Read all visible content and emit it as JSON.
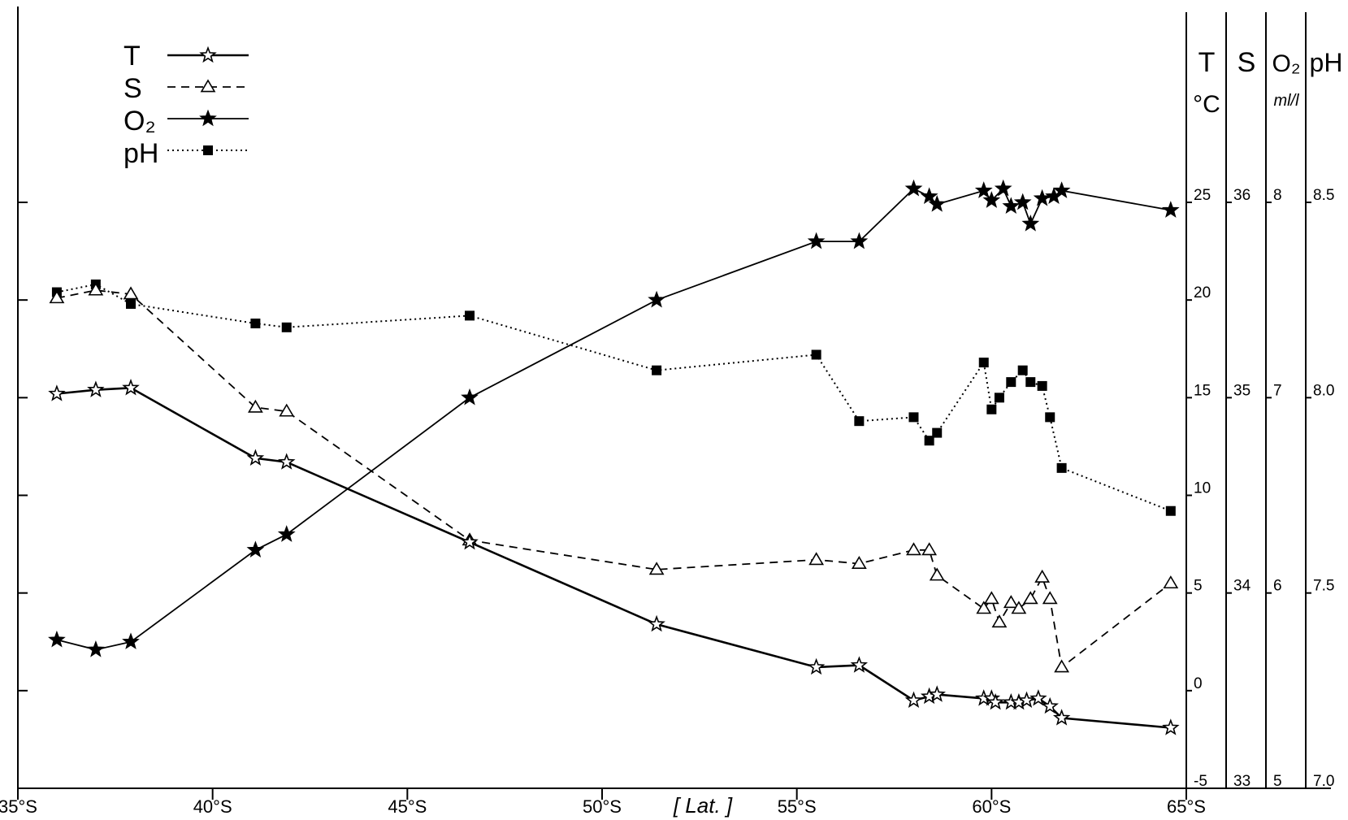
{
  "chart_data": {
    "type": "line",
    "x_axis": {
      "range": [
        35,
        65
      ],
      "ticks": [
        35,
        40,
        45,
        50,
        55,
        60,
        65
      ],
      "tick_labels": [
        "35°S",
        "40°S",
        "45°S",
        "50°S",
        "55°S",
        "60°S",
        "65°S"
      ],
      "label": "[ Lat. ]"
    },
    "y_axes": [
      {
        "title": "T",
        "unit": "°C",
        "range": [
          -5,
          25
        ],
        "ticks": [
          -5,
          0,
          5,
          10,
          15,
          20,
          25
        ],
        "tick_labels": [
          "-5",
          "0",
          "5",
          "10",
          "15",
          "20",
          "25"
        ]
      },
      {
        "title": "S",
        "unit": "",
        "range": [
          33,
          36
        ],
        "ticks": [
          33,
          34,
          35,
          36
        ],
        "tick_labels": [
          "33",
          "34",
          "35",
          "36"
        ]
      },
      {
        "title": "O₂",
        "unit": "ml/l",
        "range": [
          5,
          8
        ],
        "ticks": [
          5,
          6,
          7,
          8
        ],
        "tick_labels": [
          "5",
          "6",
          "7",
          "8"
        ]
      },
      {
        "title": "pH",
        "unit": "",
        "range": [
          7.0,
          8.5
        ],
        "ticks": [
          7.0,
          7.5,
          8.0,
          8.5
        ],
        "tick_labels": [
          "7.0",
          "7.5",
          "8.0",
          "8.5"
        ]
      }
    ],
    "legend": {
      "placement": "top-left",
      "entries": [
        {
          "label": "T",
          "line": "solid-thick",
          "marker": "open-star"
        },
        {
          "label": "S",
          "line": "dashed",
          "marker": "open-triangle"
        },
        {
          "label": "O₂",
          "line": "solid",
          "marker": "filled-star"
        },
        {
          "label": "pH",
          "line": "dotted",
          "marker": "filled-square"
        }
      ]
    },
    "grid": false,
    "series": [
      {
        "name": "T",
        "axis": 0,
        "points": [
          [
            36.0,
            15.2
          ],
          [
            37.0,
            15.4
          ],
          [
            37.9,
            15.5
          ],
          [
            41.1,
            11.9
          ],
          [
            41.9,
            11.7
          ],
          [
            46.6,
            7.6
          ],
          [
            51.4,
            3.4
          ],
          [
            55.5,
            1.2
          ],
          [
            56.6,
            1.3
          ],
          [
            58.0,
            -0.5
          ],
          [
            58.4,
            -0.3
          ],
          [
            58.6,
            -0.2
          ],
          [
            59.8,
            -0.4
          ],
          [
            60.0,
            -0.4
          ],
          [
            60.1,
            -0.6
          ],
          [
            60.5,
            -0.6
          ],
          [
            60.7,
            -0.6
          ],
          [
            60.9,
            -0.5
          ],
          [
            61.2,
            -0.4
          ],
          [
            61.5,
            -0.8
          ],
          [
            61.8,
            -1.4
          ],
          [
            64.6,
            -1.9
          ]
        ]
      },
      {
        "name": "S",
        "axis": 1,
        "points": [
          [
            36.0,
            35.51
          ],
          [
            37.0,
            35.55
          ],
          [
            37.9,
            35.53
          ],
          [
            41.1,
            34.95
          ],
          [
            41.9,
            34.93
          ],
          [
            46.6,
            34.27
          ],
          [
            51.4,
            34.12
          ],
          [
            55.5,
            34.17
          ],
          [
            56.6,
            34.15
          ],
          [
            58.0,
            34.22
          ],
          [
            58.4,
            34.22
          ],
          [
            58.6,
            34.09
          ],
          [
            59.8,
            33.92
          ],
          [
            60.0,
            33.97
          ],
          [
            60.2,
            33.85
          ],
          [
            60.5,
            33.95
          ],
          [
            60.7,
            33.92
          ],
          [
            61.0,
            33.97
          ],
          [
            61.3,
            34.08
          ],
          [
            61.5,
            33.97
          ],
          [
            61.8,
            33.62
          ],
          [
            64.6,
            34.05
          ]
        ]
      },
      {
        "name": "O₂",
        "axis": 2,
        "points": [
          [
            36.0,
            5.76
          ],
          [
            37.0,
            5.71
          ],
          [
            37.9,
            5.75
          ],
          [
            41.1,
            6.22
          ],
          [
            41.9,
            6.3
          ],
          [
            46.6,
            7.0
          ],
          [
            51.4,
            7.5
          ],
          [
            55.5,
            7.8
          ],
          [
            56.6,
            7.8
          ],
          [
            58.0,
            8.07
          ],
          [
            58.4,
            8.03
          ],
          [
            58.6,
            7.99
          ],
          [
            59.8,
            8.06
          ],
          [
            60.0,
            8.01
          ],
          [
            60.3,
            8.07
          ],
          [
            60.5,
            7.98
          ],
          [
            60.8,
            8.0
          ],
          [
            61.0,
            7.89
          ],
          [
            61.3,
            8.02
          ],
          [
            61.6,
            8.03
          ],
          [
            61.8,
            8.06
          ],
          [
            64.6,
            7.96
          ]
        ]
      },
      {
        "name": "pH",
        "axis": 3,
        "points": [
          [
            36.0,
            8.27
          ],
          [
            37.0,
            8.29
          ],
          [
            37.9,
            8.24
          ],
          [
            41.1,
            8.19
          ],
          [
            41.9,
            8.18
          ],
          [
            46.6,
            8.21
          ],
          [
            51.4,
            8.07
          ],
          [
            55.5,
            8.11
          ],
          [
            56.6,
            7.94
          ],
          [
            58.0,
            7.95
          ],
          [
            58.4,
            7.89
          ],
          [
            58.6,
            7.91
          ],
          [
            59.8,
            8.09
          ],
          [
            60.0,
            7.97
          ],
          [
            60.2,
            8.0
          ],
          [
            60.5,
            8.04
          ],
          [
            60.8,
            8.07
          ],
          [
            61.0,
            8.04
          ],
          [
            61.3,
            8.03
          ],
          [
            61.5,
            7.95
          ],
          [
            61.8,
            7.82
          ],
          [
            64.6,
            7.71
          ]
        ]
      }
    ]
  }
}
